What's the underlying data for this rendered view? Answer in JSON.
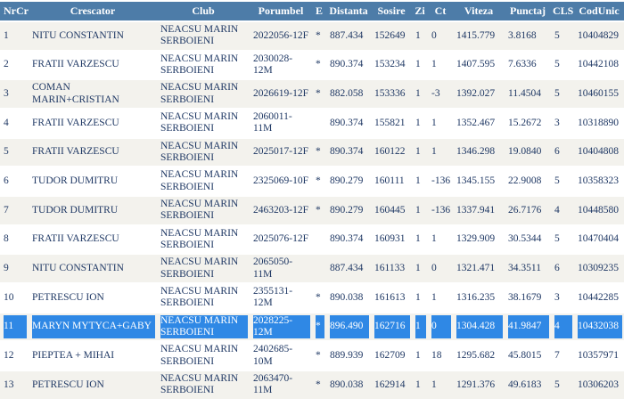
{
  "colors": {
    "header_bg": "#4d7ca8",
    "row_alt_bg": "#f3f2ed",
    "selection_bg": "#2f88e5",
    "text": "#1f3864"
  },
  "table": {
    "columns": [
      {
        "key": "nrcrt",
        "label": "NrCrt"
      },
      {
        "key": "crescator",
        "label": "Crescator"
      },
      {
        "key": "club",
        "label": "Club"
      },
      {
        "key": "porumbel",
        "label": "Porumbel"
      },
      {
        "key": "e",
        "label": "E"
      },
      {
        "key": "distanta",
        "label": "Distanta"
      },
      {
        "key": "sosire",
        "label": "Sosire"
      },
      {
        "key": "zi",
        "label": "Zi"
      },
      {
        "key": "ct",
        "label": "Ct"
      },
      {
        "key": "viteza",
        "label": "Viteza"
      },
      {
        "key": "punctaj",
        "label": "Punctaj"
      },
      {
        "key": "cls",
        "label": "CLS"
      },
      {
        "key": "codunic",
        "label": "CodUnic"
      }
    ],
    "rows": [
      {
        "nrcrt": "1",
        "crescator": "NITU CONSTANTIN",
        "club": "NEACSU MARIN SERBOIENI",
        "porumbel": "2022056-12F",
        "e": "*",
        "distanta": "887.434",
        "sosire": "152649",
        "zi": "1",
        "ct": "0",
        "viteza": "1415.779",
        "punctaj": "3.8168",
        "cls": "5",
        "codunic": "10404829",
        "selected": false
      },
      {
        "nrcrt": "2",
        "crescator": "FRATII VARZESCU",
        "club": "NEACSU MARIN SERBOIENI",
        "porumbel": "2030028-12M",
        "e": "*",
        "distanta": "890.374",
        "sosire": "153234",
        "zi": "1",
        "ct": "1",
        "viteza": "1407.595",
        "punctaj": "7.6336",
        "cls": "5",
        "codunic": "10442108",
        "selected": false
      },
      {
        "nrcrt": "3",
        "crescator": "COMAN MARIN+CRISTIAN",
        "club": "NEACSU MARIN SERBOIENI",
        "porumbel": "2026619-12F",
        "e": "*",
        "distanta": "882.058",
        "sosire": "153336",
        "zi": "1",
        "ct": "-3",
        "viteza": "1392.027",
        "punctaj": "11.4504",
        "cls": "5",
        "codunic": "10460155",
        "selected": false
      },
      {
        "nrcrt": "4",
        "crescator": "FRATII VARZESCU",
        "club": "NEACSU MARIN SERBOIENI",
        "porumbel": "2060011-11M",
        "e": "",
        "distanta": "890.374",
        "sosire": "155821",
        "zi": "1",
        "ct": "1",
        "viteza": "1352.467",
        "punctaj": "15.2672",
        "cls": "3",
        "codunic": "10318890",
        "selected": false
      },
      {
        "nrcrt": "5",
        "crescator": "FRATII VARZESCU",
        "club": "NEACSU MARIN SERBOIENI",
        "porumbel": "2025017-12F",
        "e": "*",
        "distanta": "890.374",
        "sosire": "160122",
        "zi": "1",
        "ct": "1",
        "viteza": "1346.298",
        "punctaj": "19.0840",
        "cls": "6",
        "codunic": "10404808",
        "selected": false
      },
      {
        "nrcrt": "6",
        "crescator": "TUDOR DUMITRU",
        "club": "NEACSU MARIN SERBOIENI",
        "porumbel": "2325069-10F",
        "e": "*",
        "distanta": "890.279",
        "sosire": "160111",
        "zi": "1",
        "ct": "-136",
        "viteza": "1345.155",
        "punctaj": "22.9008",
        "cls": "5",
        "codunic": "10358323",
        "selected": false
      },
      {
        "nrcrt": "7",
        "crescator": "TUDOR DUMITRU",
        "club": "NEACSU MARIN SERBOIENI",
        "porumbel": "2463203-12F",
        "e": "*",
        "distanta": "890.279",
        "sosire": "160445",
        "zi": "1",
        "ct": "-136",
        "viteza": "1337.941",
        "punctaj": "26.7176",
        "cls": "4",
        "codunic": "10448580",
        "selected": false
      },
      {
        "nrcrt": "8",
        "crescator": "FRATII VARZESCU",
        "club": "NEACSU MARIN SERBOIENI",
        "porumbel": "2025076-12F",
        "e": "",
        "distanta": "890.374",
        "sosire": "160931",
        "zi": "1",
        "ct": "1",
        "viteza": "1329.909",
        "punctaj": "30.5344",
        "cls": "5",
        "codunic": "10470404",
        "selected": false
      },
      {
        "nrcrt": "9",
        "crescator": "NITU CONSTANTIN",
        "club": "NEACSU MARIN SERBOIENI",
        "porumbel": "2065050-11M",
        "e": "",
        "distanta": "887.434",
        "sosire": "161133",
        "zi": "1",
        "ct": "0",
        "viteza": "1321.471",
        "punctaj": "34.3511",
        "cls": "6",
        "codunic": "10309235",
        "selected": false
      },
      {
        "nrcrt": "10",
        "crescator": "PETRESCU ION",
        "club": "NEACSU MARIN SERBOIENI",
        "porumbel": "2355131-12M",
        "e": "*",
        "distanta": "890.038",
        "sosire": "161613",
        "zi": "1",
        "ct": "1",
        "viteza": "1316.235",
        "punctaj": "38.1679",
        "cls": "3",
        "codunic": "10442285",
        "selected": false
      },
      {
        "nrcrt": "11",
        "crescator": "MARYN MYTYCA+GABY",
        "club": "NEACSU MARIN SERBOIENI",
        "porumbel": "2028225-12M",
        "e": "*",
        "distanta": "896.490",
        "sosire": "162716",
        "zi": "1",
        "ct": "0",
        "viteza": "1304.428",
        "punctaj": "41.9847",
        "cls": "4",
        "codunic": "10432038",
        "selected": true
      },
      {
        "nrcrt": "12",
        "crescator": "PIEPTEA + MIHAI",
        "club": "NEACSU MARIN SERBOIENI",
        "porumbel": "2402685-10M",
        "e": "*",
        "distanta": "889.939",
        "sosire": "162709",
        "zi": "1",
        "ct": "18",
        "viteza": "1295.682",
        "punctaj": "45.8015",
        "cls": "7",
        "codunic": "10357971",
        "selected": false
      },
      {
        "nrcrt": "13",
        "crescator": "PETRESCU ION",
        "club": "NEACSU MARIN SERBOIENI",
        "porumbel": "2063470-11M",
        "e": "*",
        "distanta": "890.038",
        "sosire": "162914",
        "zi": "1",
        "ct": "1",
        "viteza": "1291.376",
        "punctaj": "49.6183",
        "cls": "5",
        "codunic": "10306203",
        "selected": false
      }
    ]
  }
}
